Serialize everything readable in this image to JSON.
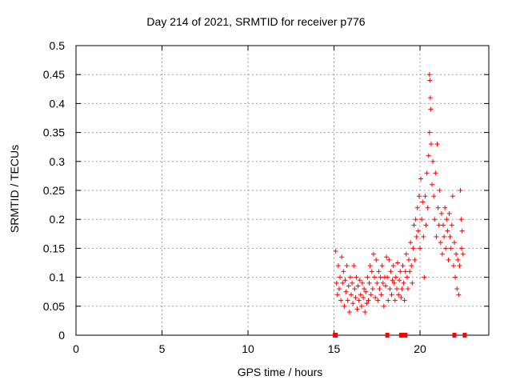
{
  "chart_data": {
    "type": "scatter",
    "title": "Day 214 of 2021, SRMTID for receiver p776",
    "xlabel": "GPS time / hours",
    "ylabel": "SRMTID / TECUs",
    "xlim": [
      0,
      24
    ],
    "ylim": [
      0,
      0.5
    ],
    "xticks": [
      0,
      5,
      10,
      15,
      20
    ],
    "yticks": [
      0,
      0.05,
      0.1,
      0.15,
      0.2,
      0.25,
      0.3,
      0.35,
      0.4,
      0.45,
      0.5
    ],
    "grid": true,
    "marker": "+",
    "color": "#ff0000",
    "series": [
      {
        "name": "SRMTID",
        "points": [
          [
            15.05,
            0.0
          ],
          [
            15.1,
            0.0
          ],
          [
            18.1,
            0.0
          ],
          [
            18.9,
            0.0
          ],
          [
            19.05,
            0.0
          ],
          [
            19.15,
            0.0
          ],
          [
            22.0,
            0.0
          ],
          [
            22.6,
            0.0
          ],
          [
            15.1,
            0.145
          ],
          [
            15.15,
            0.09
          ],
          [
            15.2,
            0.07
          ],
          [
            15.25,
            0.12
          ],
          [
            15.3,
            0.08
          ],
          [
            15.35,
            0.1
          ],
          [
            15.4,
            0.06
          ],
          [
            15.45,
            0.135
          ],
          [
            15.5,
            0.09
          ],
          [
            15.55,
            0.11
          ],
          [
            15.6,
            0.05
          ],
          [
            15.65,
            0.095
          ],
          [
            15.7,
            0.075
          ],
          [
            15.75,
            0.12
          ],
          [
            15.8,
            0.06
          ],
          [
            15.85,
            0.085
          ],
          [
            15.9,
            0.04
          ],
          [
            15.95,
            0.1
          ],
          [
            16.0,
            0.07
          ],
          [
            16.05,
            0.09
          ],
          [
            16.1,
            0.055
          ],
          [
            16.15,
            0.12
          ],
          [
            16.2,
            0.08
          ],
          [
            16.25,
            0.065
          ],
          [
            16.3,
            0.1
          ],
          [
            16.35,
            0.045
          ],
          [
            16.4,
            0.085
          ],
          [
            16.45,
            0.06
          ],
          [
            16.5,
            0.095
          ],
          [
            16.55,
            0.07
          ],
          [
            16.6,
            0.05
          ],
          [
            16.65,
            0.09
          ],
          [
            16.7,
            0.065
          ],
          [
            16.75,
            0.08
          ],
          [
            16.8,
            0.04
          ],
          [
            16.85,
            0.075
          ],
          [
            16.9,
            0.055
          ],
          [
            16.95,
            0.1
          ],
          [
            17.0,
            0.06
          ],
          [
            17.05,
            0.09
          ],
          [
            17.1,
            0.12
          ],
          [
            17.15,
            0.07
          ],
          [
            17.2,
            0.11
          ],
          [
            17.25,
            0.08
          ],
          [
            17.3,
            0.14
          ],
          [
            17.35,
            0.1
          ],
          [
            17.4,
            0.065
          ],
          [
            17.45,
            0.13
          ],
          [
            17.5,
            0.09
          ],
          [
            17.55,
            0.06
          ],
          [
            17.6,
            0.11
          ],
          [
            17.65,
            0.08
          ],
          [
            17.7,
            0.1
          ],
          [
            17.75,
            0.07
          ],
          [
            17.8,
            0.12
          ],
          [
            17.85,
            0.09
          ],
          [
            17.9,
            0.05
          ],
          [
            17.95,
            0.1
          ],
          [
            18.0,
            0.085
          ],
          [
            18.05,
            0.135
          ],
          [
            18.1,
            0.1
          ],
          [
            18.15,
            0.06
          ],
          [
            18.2,
            0.13
          ],
          [
            18.25,
            0.08
          ],
          [
            18.3,
            0.11
          ],
          [
            18.35,
            0.07
          ],
          [
            18.4,
            0.095
          ],
          [
            18.45,
            0.12
          ],
          [
            18.5,
            0.09
          ],
          [
            18.55,
            0.06
          ],
          [
            18.6,
            0.1
          ],
          [
            18.65,
            0.08
          ],
          [
            18.7,
            0.125
          ],
          [
            18.75,
            0.07
          ],
          [
            18.8,
            0.095
          ],
          [
            18.85,
            0.11
          ],
          [
            18.9,
            0.065
          ],
          [
            18.95,
            0.08
          ],
          [
            19.0,
            0.12
          ],
          [
            19.05,
            0.09
          ],
          [
            19.1,
            0.06
          ],
          [
            19.15,
            0.11
          ],
          [
            19.2,
            0.14
          ],
          [
            19.25,
            0.1
          ],
          [
            19.3,
            0.08
          ],
          [
            19.35,
            0.13
          ],
          [
            19.4,
            0.11
          ],
          [
            19.45,
            0.16
          ],
          [
            19.5,
            0.12
          ],
          [
            19.55,
            0.09
          ],
          [
            19.6,
            0.15
          ],
          [
            19.65,
            0.19
          ],
          [
            19.7,
            0.13
          ],
          [
            19.75,
            0.2
          ],
          [
            19.8,
            0.17
          ],
          [
            19.85,
            0.22
          ],
          [
            19.9,
            0.18
          ],
          [
            19.95,
            0.24
          ],
          [
            20.0,
            0.15
          ],
          [
            20.05,
            0.27
          ],
          [
            20.1,
            0.2
          ],
          [
            20.15,
            0.23
          ],
          [
            20.2,
            0.17
          ],
          [
            20.25,
            0.1
          ],
          [
            20.3,
            0.24
          ],
          [
            20.35,
            0.19
          ],
          [
            20.4,
            0.28
          ],
          [
            20.45,
            0.22
          ],
          [
            20.5,
            0.31
          ],
          [
            20.55,
            0.35
          ],
          [
            20.55,
            0.45
          ],
          [
            20.58,
            0.44
          ],
          [
            20.6,
            0.41
          ],
          [
            20.62,
            0.39
          ],
          [
            20.65,
            0.33
          ],
          [
            20.7,
            0.26
          ],
          [
            20.75,
            0.3
          ],
          [
            20.8,
            0.24
          ],
          [
            20.85,
            0.2
          ],
          [
            20.9,
            0.28
          ],
          [
            20.95,
            0.17
          ],
          [
            21.0,
            0.33
          ],
          [
            21.05,
            0.22
          ],
          [
            21.1,
            0.19
          ],
          [
            21.15,
            0.25
          ],
          [
            21.2,
            0.16
          ],
          [
            21.25,
            0.21
          ],
          [
            21.3,
            0.14
          ],
          [
            21.35,
            0.19
          ],
          [
            21.4,
            0.17
          ],
          [
            21.45,
            0.22
          ],
          [
            21.5,
            0.15
          ],
          [
            21.55,
            0.2
          ],
          [
            21.6,
            0.18
          ],
          [
            21.65,
            0.13
          ],
          [
            21.7,
            0.21
          ],
          [
            21.75,
            0.17
          ],
          [
            21.8,
            0.15
          ],
          [
            21.85,
            0.19
          ],
          [
            21.9,
            0.24
          ],
          [
            21.95,
            0.12
          ],
          [
            22.0,
            0.16
          ],
          [
            22.05,
            0.1
          ],
          [
            22.1,
            0.14
          ],
          [
            22.15,
            0.08
          ],
          [
            22.2,
            0.13
          ],
          [
            22.25,
            0.07
          ],
          [
            22.3,
            0.12
          ],
          [
            22.35,
            0.25
          ],
          [
            22.4,
            0.2
          ],
          [
            22.42,
            0.15
          ],
          [
            22.45,
            0.18
          ],
          [
            22.5,
            0.14
          ]
        ]
      }
    ]
  }
}
